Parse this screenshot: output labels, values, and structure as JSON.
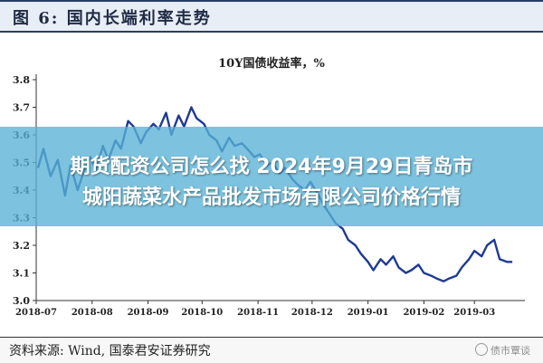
{
  "header": {
    "figure_title": "图 6:  国内长端利率走势"
  },
  "banner": {
    "line1": "期货配资公司怎么找 2024年9月29日青岛市",
    "line2": "城阳蔬菜水产品批发市场有限公司价格行情"
  },
  "footer": {
    "source": "资料来源:  Wind,  国泰君安证券研究",
    "watermark": "债市覃谈"
  },
  "chart_data": {
    "type": "line",
    "title": "10Y国债收益率，%",
    "xlabel": "",
    "ylabel": "",
    "ylim": [
      3.0,
      3.8
    ],
    "yticks": [
      "3.0",
      "3.1",
      "3.2",
      "3.3",
      "3.4",
      "3.5",
      "3.6",
      "3.7",
      "3.8"
    ],
    "xticks": [
      "2018-07",
      "2018-08",
      "2018-09",
      "2018-10",
      "2018-11",
      "2018-12",
      "2019-01",
      "2019-02",
      "2019-03"
    ],
    "grid": false,
    "line_color": "#1f3a93",
    "series": [
      {
        "name": "",
        "x": [
          "2018-07-02",
          "2018-07-05",
          "2018-07-09",
          "2018-07-13",
          "2018-07-17",
          "2018-07-20",
          "2018-07-24",
          "2018-07-27",
          "2018-07-31",
          "2018-08-03",
          "2018-08-07",
          "2018-08-10",
          "2018-08-14",
          "2018-08-17",
          "2018-08-21",
          "2018-08-24",
          "2018-08-28",
          "2018-08-31",
          "2018-09-04",
          "2018-09-07",
          "2018-09-11",
          "2018-09-14",
          "2018-09-18",
          "2018-09-21",
          "2018-09-25",
          "2018-09-28",
          "2018-10-02",
          "2018-10-05",
          "2018-10-09",
          "2018-10-12",
          "2018-10-16",
          "2018-10-19",
          "2018-10-23",
          "2018-10-26",
          "2018-10-30",
          "2018-11-02",
          "2018-11-06",
          "2018-11-09",
          "2018-11-13",
          "2018-11-16",
          "2018-11-20",
          "2018-11-23",
          "2018-11-27",
          "2018-11-30",
          "2018-12-04",
          "2018-12-07",
          "2018-12-11",
          "2018-12-14",
          "2018-12-18",
          "2018-12-21",
          "2018-12-25",
          "2018-12-28",
          "2019-01-01",
          "2019-01-04",
          "2019-01-08",
          "2019-01-11",
          "2019-01-15",
          "2019-01-18",
          "2019-01-22",
          "2019-01-25",
          "2019-01-29",
          "2019-02-01",
          "2019-02-05",
          "2019-02-08",
          "2019-02-12",
          "2019-02-15",
          "2019-02-19",
          "2019-02-22",
          "2019-02-26",
          "2019-03-01",
          "2019-03-05",
          "2019-03-08",
          "2019-03-12",
          "2019-03-15",
          "2019-03-19",
          "2019-03-22"
        ],
        "values": [
          3.48,
          3.55,
          3.45,
          3.51,
          3.38,
          3.49,
          3.4,
          3.46,
          3.52,
          3.47,
          3.56,
          3.51,
          3.58,
          3.55,
          3.65,
          3.63,
          3.57,
          3.61,
          3.64,
          3.62,
          3.68,
          3.6,
          3.67,
          3.63,
          3.7,
          3.66,
          3.64,
          3.6,
          3.58,
          3.54,
          3.59,
          3.56,
          3.57,
          3.55,
          3.52,
          3.53,
          3.49,
          3.5,
          3.46,
          3.48,
          3.44,
          3.42,
          3.4,
          3.43,
          3.39,
          3.35,
          3.31,
          3.28,
          3.26,
          3.22,
          3.2,
          3.17,
          3.14,
          3.11,
          3.15,
          3.13,
          3.16,
          3.12,
          3.1,
          3.11,
          3.13,
          3.1,
          3.09,
          3.08,
          3.07,
          3.08,
          3.09,
          3.12,
          3.15,
          3.18,
          3.16,
          3.2,
          3.22,
          3.15,
          3.14,
          3.14
        ]
      }
    ]
  }
}
